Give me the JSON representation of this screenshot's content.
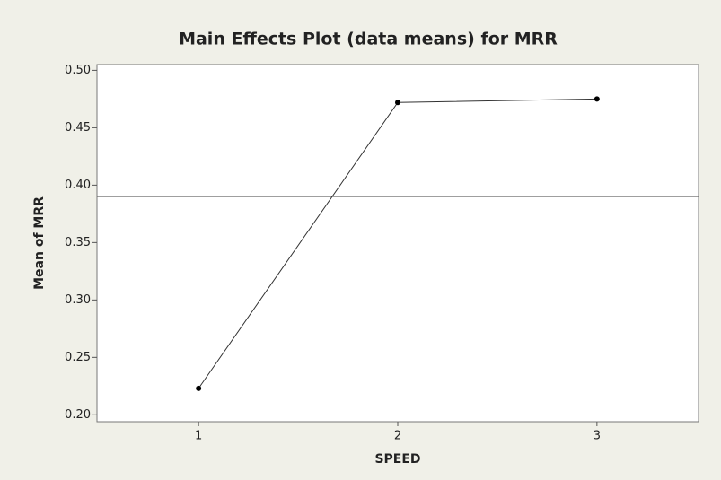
{
  "chart_data": {
    "type": "line",
    "title": "Main Effects Plot (data means) for MRR",
    "x_label": "SPEED",
    "y_label": "Mean of MRR",
    "x": [
      1,
      2,
      3
    ],
    "series": [
      {
        "color": "#333333",
        "values": [
          0.223,
          0.472,
          0.475
        ]
      }
    ],
    "reference_line": 0.39,
    "xlim": [
      0.49,
      3.51
    ],
    "xticks": [
      1,
      2,
      3
    ],
    "ylim": [
      0.194,
      0.505
    ],
    "yticks": [
      {
        "value": 0.2,
        "label": "0.20"
      },
      {
        "value": 0.25,
        "label": "0.25"
      },
      {
        "value": 0.3,
        "label": "0.30"
      },
      {
        "value": 0.35,
        "label": "0.35"
      },
      {
        "value": 0.4,
        "label": "0.40"
      },
      {
        "value": 0.45,
        "label": "0.45"
      },
      {
        "value": 0.5,
        "label": "0.50"
      }
    ]
  }
}
